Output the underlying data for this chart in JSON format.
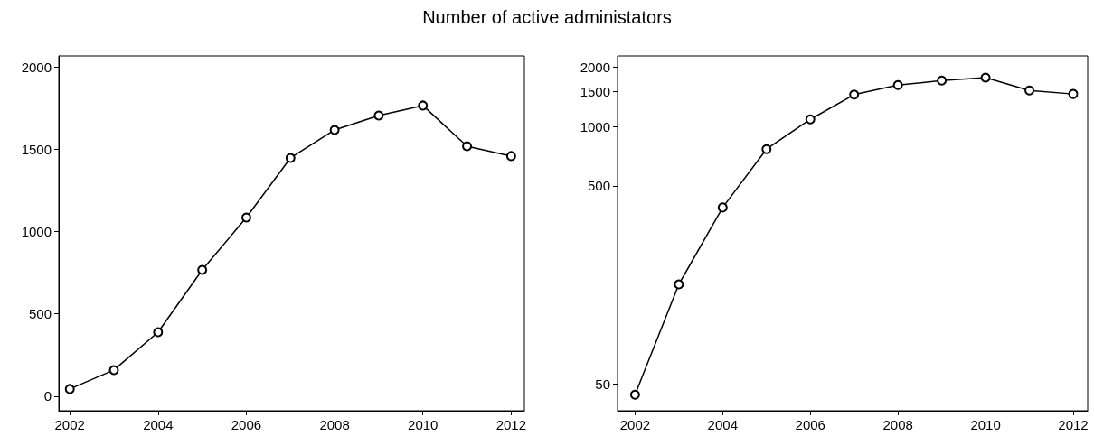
{
  "chart_data": [
    {
      "type": "line",
      "title": "Number of active administators",
      "x": [
        2002,
        2003,
        2004,
        2005,
        2006,
        2007,
        2008,
        2009,
        2010,
        2011,
        2012
      ],
      "values": [
        44,
        159,
        389,
        767,
        1085,
        1447,
        1617,
        1704,
        1765,
        1518,
        1458
      ],
      "color": "#000000",
      "marker": "circle",
      "xlim": [
        2001.75,
        2012.3
      ],
      "xticks": [
        2002,
        2004,
        2006,
        2008,
        2010,
        2012
      ],
      "ylim": [
        -88,
        2066
      ],
      "yticks": [
        0,
        500,
        1000,
        1500,
        2000
      ]
    },
    {
      "type": "line",
      "x": [
        2002,
        2003,
        2004,
        2005,
        2006,
        2007,
        2008,
        2009,
        2010,
        2011,
        2012
      ],
      "values": [
        44,
        159,
        389,
        767,
        1085,
        1447,
        1617,
        1704,
        1765,
        1518,
        1458
      ],
      "color": "#000000",
      "marker": "circle",
      "log": "y",
      "xlim": [
        2001.6,
        2012.33
      ],
      "xticks": [
        2002,
        2004,
        2006,
        2008,
        2010,
        2012
      ],
      "ylim": [
        36.5,
        2270
      ],
      "yticks": [
        50,
        500,
        1000,
        1500,
        2000
      ]
    }
  ]
}
